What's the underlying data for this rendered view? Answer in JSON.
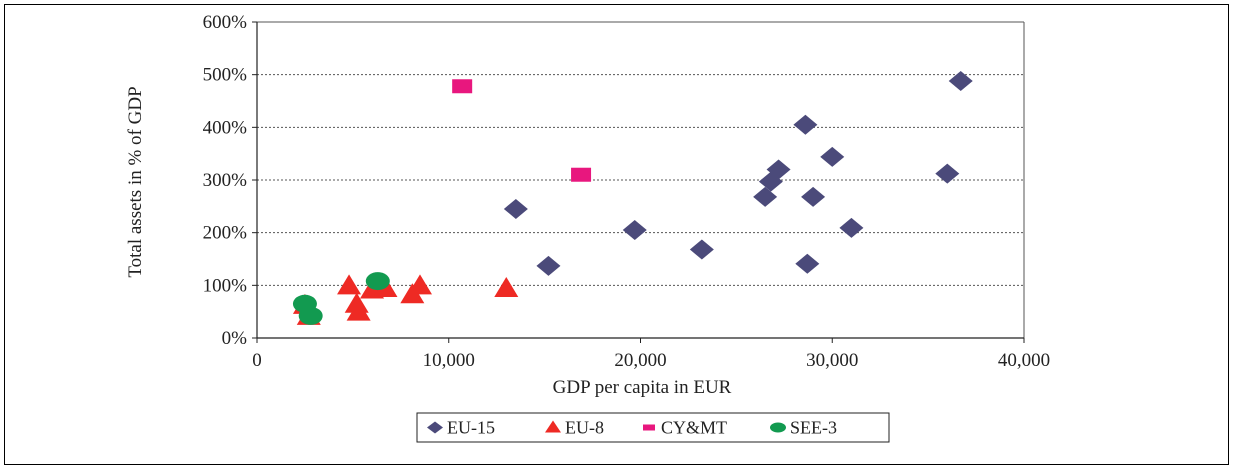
{
  "chart_data": {
    "type": "scatter",
    "xlabel": "GDP per capita in EUR",
    "ylabel": "Total assets in % of GDP",
    "xlim": [
      0,
      40000
    ],
    "ylim": [
      0,
      600
    ],
    "x_ticks": [
      0,
      10000,
      20000,
      30000,
      40000
    ],
    "x_tick_labels": [
      "0",
      "10,000",
      "20,000",
      "30,000",
      "40,000"
    ],
    "y_ticks": [
      0,
      100,
      200,
      300,
      400,
      500,
      600
    ],
    "y_tick_labels": [
      "0%",
      "100%",
      "200%",
      "300%",
      "400%",
      "500%",
      "600%"
    ],
    "grid": "horizontal dotted",
    "legend_position": "bottom",
    "series": [
      {
        "name": "EU-15",
        "marker": "diamond",
        "color": "#4b4a7a",
        "points": [
          [
            13500,
            245
          ],
          [
            15200,
            137
          ],
          [
            19700,
            205
          ],
          [
            23200,
            168
          ],
          [
            26500,
            268
          ],
          [
            26800,
            297
          ],
          [
            27200,
            320
          ],
          [
            28600,
            405
          ],
          [
            28700,
            141
          ],
          [
            29000,
            268
          ],
          [
            30000,
            344
          ],
          [
            31000,
            209
          ],
          [
            36000,
            312
          ],
          [
            36700,
            488
          ]
        ]
      },
      {
        "name": "EU-8",
        "marker": "triangle",
        "color": "#ee2a24",
        "points": [
          [
            2500,
            63
          ],
          [
            2700,
            42
          ],
          [
            4800,
            100
          ],
          [
            5200,
            65
          ],
          [
            5300,
            50
          ],
          [
            6000,
            92
          ],
          [
            6700,
            95
          ],
          [
            8100,
            83
          ],
          [
            8500,
            100
          ],
          [
            13000,
            95
          ]
        ]
      },
      {
        "name": "CY&MT",
        "marker": "square",
        "color": "#e8177e",
        "points": [
          [
            10700,
            478
          ],
          [
            16900,
            310
          ]
        ]
      },
      {
        "name": "SEE-3",
        "marker": "circle",
        "color": "#129a50",
        "points": [
          [
            2500,
            65
          ],
          [
            2800,
            42
          ],
          [
            6300,
            108
          ]
        ]
      }
    ]
  }
}
